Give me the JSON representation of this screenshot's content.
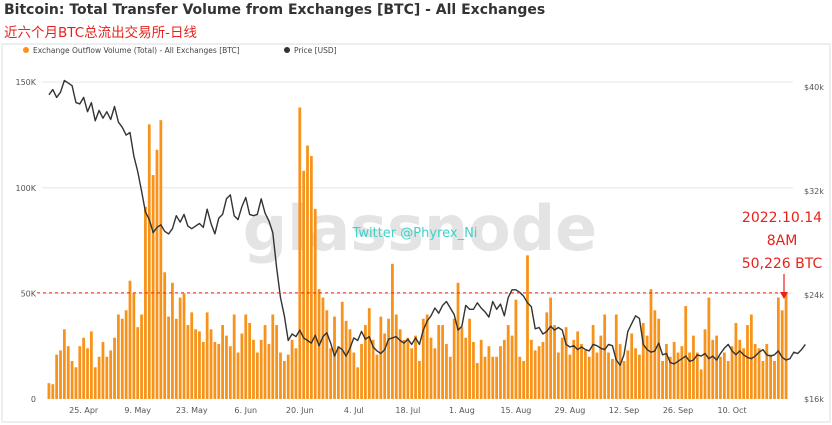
{
  "title": "Bitcoin: Total Transfer Volume from Exchanges [BTC] - All Exchanges",
  "subtitle": "近六个月BTC总流出交易所-日线",
  "colors": {
    "bar": "#f7931a",
    "line": "#333333",
    "threshold": "#e8221b",
    "annotation": "#e8221b",
    "grid": "#e6e6e6",
    "axis_text": "#555555",
    "watermark": "#e4e4e4",
    "twitter": "#3fd2c7"
  },
  "watermark": "glassnode",
  "twitter_text": "Twitter @Phyrex_Ni",
  "annotation": {
    "lines": [
      "2022.10.14",
      "8AM",
      "50,226 BTC"
    ]
  },
  "chart_data": {
    "type": "bar",
    "title": "Bitcoin: Total Transfer Volume from Exchanges [BTC] - All Exchanges",
    "legend": {
      "placement": "top-left",
      "entries": [
        "Exchange Outflow Volume (Total) - All Exchanges [BTC]",
        "Price [USD]"
      ]
    },
    "x_tick_labels": [
      "25. Apr",
      "9. May",
      "23. May",
      "6. Jun",
      "20. Jun",
      "4. Jul",
      "18. Jul",
      "1. Aug",
      "15. Aug",
      "29. Aug",
      "12. Sep",
      "26. Sep",
      "10. Oct"
    ],
    "x_tick_index": [
      9,
      23,
      37,
      51,
      65,
      79,
      93,
      107,
      121,
      135,
      149,
      163,
      177
    ],
    "y_left": {
      "ticks": [
        "0",
        "50K",
        "100K",
        "150K"
      ],
      "range": [
        0,
        160000
      ]
    },
    "y_right": {
      "ticks": [
        "$16k",
        "$24k",
        "$32k",
        "$40k"
      ],
      "range": [
        16000,
        42000
      ]
    },
    "threshold": 50226,
    "series": [
      {
        "name": "Exchange Outflow Volume (Total) - All Exchanges [BTC]",
        "type": "bar",
        "values": [
          7500,
          7000,
          21000,
          23000,
          33000,
          25000,
          18000,
          15000,
          25000,
          29000,
          24000,
          32000,
          15000,
          20000,
          27000,
          20000,
          23000,
          29000,
          40000,
          38000,
          42000,
          56000,
          50000,
          34000,
          40000,
          91000,
          130000,
          106000,
          118000,
          132000,
          60000,
          39000,
          55000,
          38000,
          48000,
          50000,
          35000,
          41000,
          33000,
          32000,
          27000,
          41000,
          33000,
          27000,
          26000,
          35000,
          30000,
          25000,
          40000,
          22000,
          31000,
          40000,
          36000,
          28000,
          22000,
          28000,
          35000,
          26000,
          40000,
          35000,
          22000,
          18000,
          21000,
          28000,
          24000,
          138000,
          108000,
          120000,
          115000,
          90000,
          52000,
          48000,
          42000,
          24000,
          39000,
          25000,
          46000,
          37000,
          33000,
          22000,
          15000,
          26000,
          35000,
          43000,
          28000,
          21000,
          39000,
          31000,
          38000,
          64000,
          40000,
          33000,
          28000,
          29000,
          24000,
          30000,
          18000,
          38000,
          40000,
          29000,
          24000,
          35000,
          35000,
          26000,
          20000,
          38000,
          55000,
          34000,
          29000,
          38000,
          27000,
          17000,
          28000,
          20000,
          25000,
          20000,
          20000,
          25000,
          28000,
          35000,
          30000,
          47000,
          20000,
          18000,
          68000,
          28000,
          23000,
          25000,
          27000,
          41000,
          48000,
          35000,
          22000,
          29000,
          34000,
          21000,
          28000,
          32000,
          26000,
          23000,
          20000,
          35000,
          22000,
          30000,
          40000,
          22000,
          19000,
          40000,
          26000,
          18000,
          23000,
          31000,
          24000,
          21000,
          36000,
          30000,
          52000,
          42000,
          38000,
          18000,
          26000,
          20000,
          27000,
          22000,
          25000,
          44000,
          22000,
          30000,
          22000,
          14000,
          33000,
          48000,
          28000,
          30000,
          20000,
          22000,
          18000,
          25000,
          36000,
          28000,
          24000,
          35000,
          40000,
          26000,
          24000,
          18000,
          26000,
          21000,
          18000,
          48000,
          42000,
          50226
        ]
      },
      {
        "name": "Price [USD]",
        "type": "line",
        "values": [
          39400,
          39800,
          39200,
          39600,
          40500,
          40300,
          40100,
          38800,
          38700,
          39200,
          38100,
          38800,
          37400,
          38200,
          37600,
          38100,
          37500,
          38500,
          37300,
          36900,
          36300,
          36500,
          34700,
          33500,
          32000,
          30400,
          29800,
          28800,
          29200,
          29400,
          28900,
          28700,
          29100,
          30100,
          29600,
          30200,
          29300,
          29100,
          29300,
          29500,
          29200,
          30600,
          29500,
          28700,
          29900,
          30200,
          31400,
          31700,
          30100,
          29800,
          30800,
          31500,
          30200,
          30100,
          30200,
          31400,
          30300,
          29700,
          28800,
          26100,
          23800,
          22400,
          20500,
          21000,
          20800,
          21300,
          20700,
          20500,
          20300,
          20900,
          20100,
          20800,
          21100,
          20300,
          19300,
          20000,
          19800,
          19300,
          19900,
          20700,
          20500,
          21200,
          20600,
          20800,
          20000,
          19700,
          19500,
          19800,
          20600,
          20700,
          20800,
          20500,
          20300,
          20600,
          20200,
          20700,
          20200,
          21300,
          22000,
          22400,
          23000,
          22600,
          23200,
          23500,
          23000,
          22500,
          21300,
          21600,
          23200,
          22900,
          22900,
          23400,
          23000,
          22700,
          22300,
          23500,
          22900,
          23300,
          22400,
          23800,
          24400,
          24400,
          24200,
          23900,
          23400,
          23100,
          21400,
          21500,
          21000,
          21200,
          21600,
          21300,
          21500,
          21300,
          20200,
          20000,
          20100,
          19800,
          20000,
          19800,
          19700,
          20200,
          20100,
          19900,
          19800,
          20200,
          20100,
          19000,
          18600,
          19400,
          21200,
          21800,
          22400,
          22200,
          20200,
          19800,
          19600,
          19700,
          20300,
          19400,
          19500,
          18800,
          18700,
          18900,
          19100,
          19300,
          18900,
          19000,
          19400,
          19300,
          19500,
          19100,
          19300,
          19000,
          19500,
          19900,
          20200,
          19700,
          19400,
          19700,
          19400,
          19200,
          19100,
          19300,
          19600,
          19800,
          19400,
          19300,
          19400,
          19700,
          19200,
          19000,
          19100,
          19600,
          19500,
          19800,
          20200
        ]
      }
    ]
  }
}
